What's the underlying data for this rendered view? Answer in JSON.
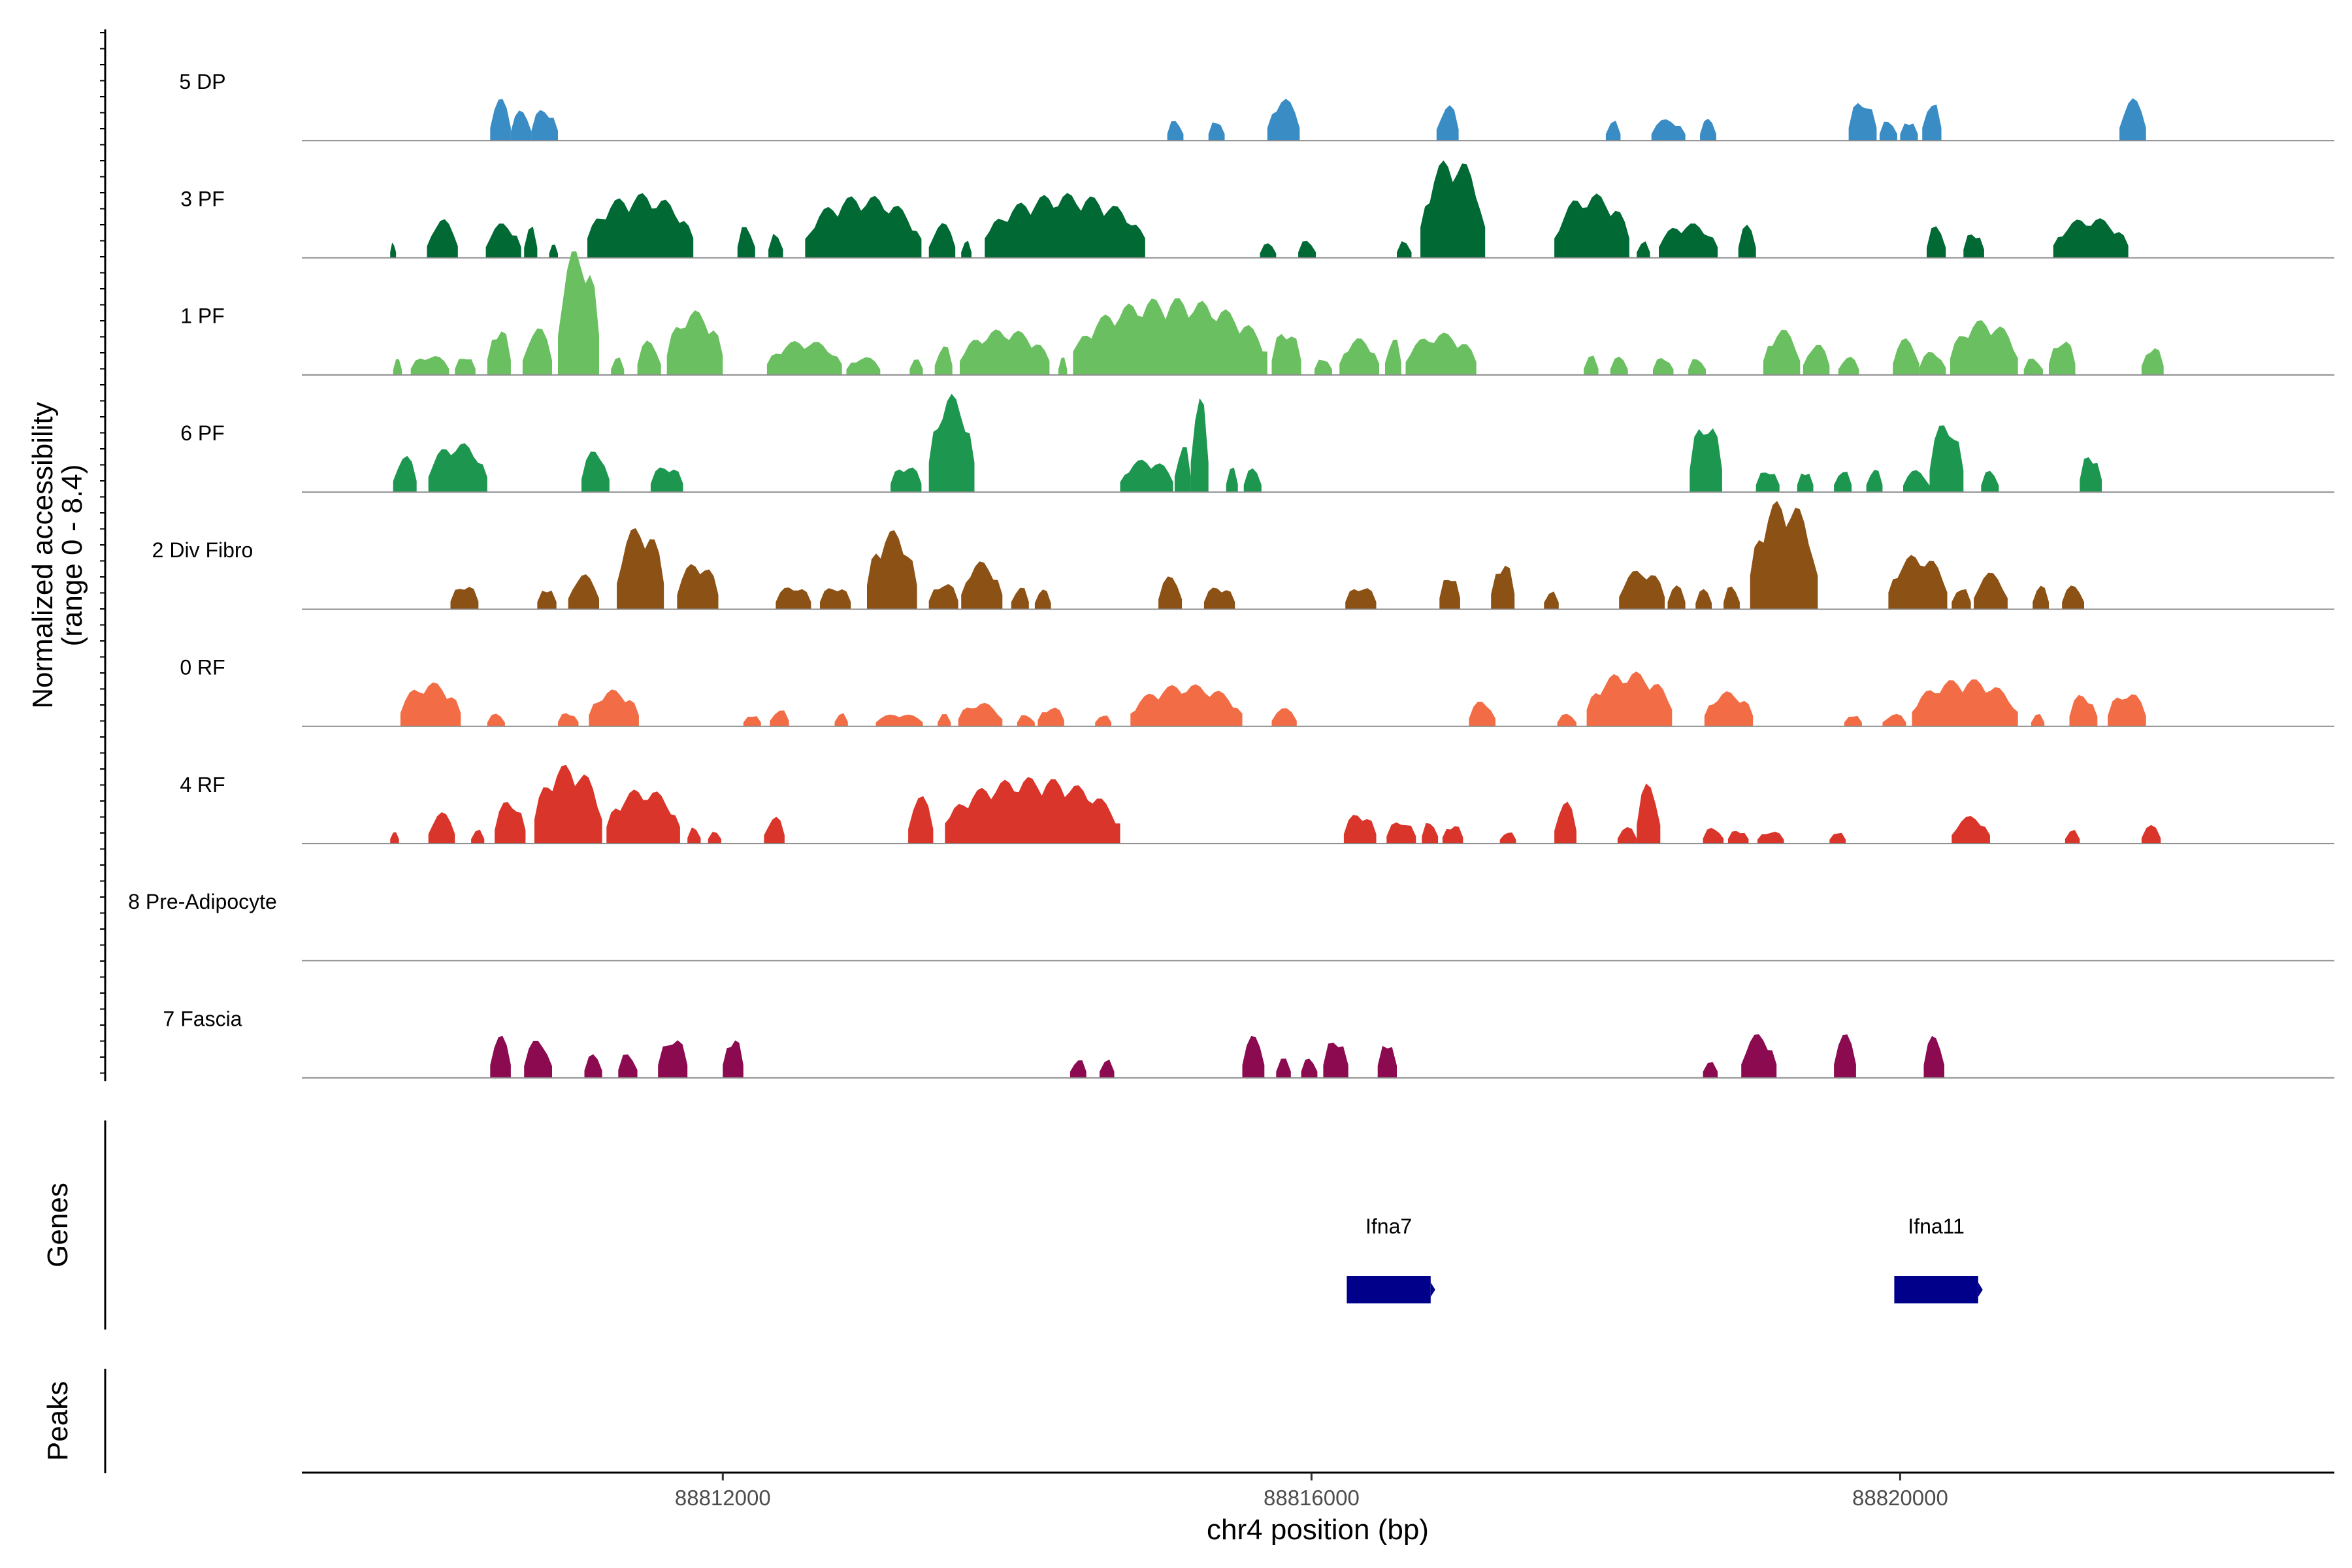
{
  "chart_data": {
    "type": "area",
    "title": "",
    "ylabel": "Normalized accessibility",
    "ylabel_range": "(range 0 - 8.4)",
    "ylim": [
      0,
      8.4
    ],
    "xlabel": "chr4 position (bp)",
    "xlim": [
      88809140,
      88822950
    ],
    "x_ticks": [
      88812000,
      88816000,
      88820000
    ],
    "x_tick_labels": [
      "88812000",
      "88816000",
      "88820000"
    ],
    "tracks_axis_label": "Genes",
    "peaks_axis_label": "Peaks",
    "series": [
      {
        "name": "5 DP",
        "color": "#3a8cc5",
        "peaks": [
          [
            88810420,
            88810560,
            0.46
          ],
          [
            88810560,
            88810700,
            0.33
          ],
          [
            88810700,
            88810880,
            0.36
          ],
          [
            88815020,
            88815130,
            0.24
          ],
          [
            88815300,
            88815410,
            0.24
          ],
          [
            88815700,
            88815920,
            0.46
          ],
          [
            88816850,
            88817000,
            0.4
          ],
          [
            88818000,
            88818100,
            0.24
          ],
          [
            88818310,
            88818540,
            0.24
          ],
          [
            88818640,
            88818750,
            0.24
          ],
          [
            88819650,
            88819840,
            0.46
          ],
          [
            88819860,
            88819980,
            0.24
          ],
          [
            88820000,
            88820120,
            0.24
          ],
          [
            88820150,
            88820280,
            0.46
          ],
          [
            88821490,
            88821670,
            0.46
          ]
        ]
      },
      {
        "name": "3 PF",
        "color": "#006934",
        "peaks": [
          [
            88809740,
            88809780,
            0.2
          ],
          [
            88809990,
            88810200,
            0.42
          ],
          [
            88810390,
            88810630,
            0.38
          ],
          [
            88810650,
            88810740,
            0.36
          ],
          [
            88810820,
            88810880,
            0.15
          ],
          [
            88811080,
            88811800,
            0.7
          ],
          [
            88812100,
            88812220,
            0.38
          ],
          [
            88812310,
            88812410,
            0.3
          ],
          [
            88812560,
            88813350,
            0.68
          ],
          [
            88813400,
            88813580,
            0.38
          ],
          [
            88813620,
            88813690,
            0.2
          ],
          [
            88813780,
            88814870,
            0.7
          ],
          [
            88815650,
            88815760,
            0.16
          ],
          [
            88815910,
            88816030,
            0.2
          ],
          [
            88816580,
            88816680,
            0.2
          ],
          [
            88816740,
            88817180,
            1.1
          ],
          [
            88817650,
            88818160,
            0.7
          ],
          [
            88818210,
            88818300,
            0.2
          ],
          [
            88818360,
            88818760,
            0.38
          ],
          [
            88818900,
            88819020,
            0.36
          ],
          [
            88820180,
            88820310,
            0.36
          ],
          [
            88820430,
            88820570,
            0.3
          ],
          [
            88821040,
            88821550,
            0.44
          ]
        ]
      },
      {
        "name": "1 PF",
        "color": "#6abf60",
        "peaks": [
          [
            88809760,
            88809820,
            0.18
          ],
          [
            88809880,
            88810140,
            0.22
          ],
          [
            88810180,
            88810320,
            0.22
          ],
          [
            88810400,
            88810560,
            0.54
          ],
          [
            88810640,
            88810840,
            0.52
          ],
          [
            88810880,
            88811160,
            1.4
          ],
          [
            88811240,
            88811330,
            0.2
          ],
          [
            88811420,
            88811580,
            0.38
          ],
          [
            88811620,
            88812000,
            0.7
          ],
          [
            88812300,
            88812810,
            0.38
          ],
          [
            88812840,
            88813070,
            0.2
          ],
          [
            88813270,
            88813360,
            0.22
          ],
          [
            88813440,
            88813560,
            0.34
          ],
          [
            88813610,
            88814220,
            0.5
          ],
          [
            88814280,
            88814340,
            0.2
          ],
          [
            88814380,
            88815700,
            0.84
          ],
          [
            88815730,
            88815930,
            0.52
          ],
          [
            88816020,
            88816140,
            0.2
          ],
          [
            88816190,
            88816460,
            0.4
          ],
          [
            88816500,
            88816610,
            0.44
          ],
          [
            88816640,
            88817120,
            0.46
          ],
          [
            88817850,
            88817950,
            0.22
          ],
          [
            88818030,
            88818150,
            0.2
          ],
          [
            88818320,
            88818460,
            0.2
          ],
          [
            88818560,
            88818680,
            0.2
          ],
          [
            88819070,
            88819320,
            0.5
          ],
          [
            88819340,
            88819520,
            0.34
          ],
          [
            88819580,
            88819720,
            0.2
          ],
          [
            88819950,
            88820130,
            0.4
          ],
          [
            88820130,
            88820310,
            0.26
          ],
          [
            88820340,
            88820800,
            0.6
          ],
          [
            88820840,
            88820970,
            0.2
          ],
          [
            88821010,
            88821190,
            0.4
          ],
          [
            88821640,
            88821790,
            0.32
          ]
        ]
      },
      {
        "name": "6 PF",
        "color": "#1d9650",
        "peaks": [
          [
            88809760,
            88809920,
            0.4
          ],
          [
            88810000,
            88810400,
            0.54
          ],
          [
            88811040,
            88811230,
            0.46
          ],
          [
            88811510,
            88811730,
            0.3
          ],
          [
            88813140,
            88813350,
            0.3
          ],
          [
            88813400,
            88813710,
            1.06
          ],
          [
            88814700,
            88815060,
            0.36
          ],
          [
            88815070,
            88815180,
            0.56
          ],
          [
            88815180,
            88815300,
            1.06
          ],
          [
            88815420,
            88815500,
            0.28
          ],
          [
            88815540,
            88815660,
            0.26
          ],
          [
            88818570,
            88818790,
            0.8
          ],
          [
            88819020,
            88819180,
            0.26
          ],
          [
            88819300,
            88819410,
            0.26
          ],
          [
            88819550,
            88819670,
            0.26
          ],
          [
            88819770,
            88819880,
            0.26
          ],
          [
            88820020,
            88820200,
            0.24
          ],
          [
            88820200,
            88820430,
            0.78
          ],
          [
            88820550,
            88820670,
            0.24
          ],
          [
            88821220,
            88821370,
            0.44
          ]
        ]
      },
      {
        "name": "2 Div Fibro",
        "color": "#8b5115",
        "peaks": [
          [
            88810150,
            88810340,
            0.28
          ],
          [
            88810740,
            88810870,
            0.26
          ],
          [
            88810950,
            88811160,
            0.38
          ],
          [
            88811280,
            88811600,
            0.92
          ],
          [
            88811690,
            88811970,
            0.52
          ],
          [
            88812360,
            88812600,
            0.26
          ],
          [
            88812660,
            88812870,
            0.26
          ],
          [
            88812980,
            88813320,
            0.86
          ],
          [
            88813400,
            88813600,
            0.3
          ],
          [
            88813620,
            88813900,
            0.52
          ],
          [
            88813960,
            88814080,
            0.26
          ],
          [
            88814120,
            88814230,
            0.22
          ],
          [
            88814960,
            88815120,
            0.36
          ],
          [
            88815270,
            88815480,
            0.26
          ],
          [
            88816230,
            88816440,
            0.26
          ],
          [
            88816870,
            88817010,
            0.4
          ],
          [
            88817220,
            88817380,
            0.54
          ],
          [
            88817580,
            88817680,
            0.24
          ],
          [
            88818090,
            88818400,
            0.44
          ],
          [
            88818420,
            88818540,
            0.26
          ],
          [
            88818610,
            88818720,
            0.22
          ],
          [
            88818800,
            88818910,
            0.26
          ],
          [
            88818980,
            88819440,
            1.2
          ],
          [
            88819920,
            88820320,
            0.6
          ],
          [
            88820350,
            88820480,
            0.26
          ],
          [
            88820500,
            88820730,
            0.4
          ],
          [
            88820900,
            88821010,
            0.26
          ],
          [
            88821100,
            88821250,
            0.26
          ]
        ]
      },
      {
        "name": "0 RF",
        "color": "#f26d46",
        "peaks": [
          [
            88809810,
            88810220,
            0.48
          ],
          [
            88810400,
            88810520,
            0.14
          ],
          [
            88810880,
            88811020,
            0.16
          ],
          [
            88811090,
            88811430,
            0.4
          ],
          [
            88812140,
            88812260,
            0.14
          ],
          [
            88812320,
            88812450,
            0.2
          ],
          [
            88812760,
            88812850,
            0.16
          ],
          [
            88813040,
            88813360,
            0.14
          ],
          [
            88813460,
            88813550,
            0.14
          ],
          [
            88813600,
            88813900,
            0.26
          ],
          [
            88814000,
            88814120,
            0.14
          ],
          [
            88814140,
            88814320,
            0.22
          ],
          [
            88814530,
            88814640,
            0.14
          ],
          [
            88814770,
            88815530,
            0.46
          ],
          [
            88815730,
            88815900,
            0.2
          ],
          [
            88817070,
            88817250,
            0.28
          ],
          [
            88817670,
            88817800,
            0.14
          ],
          [
            88817870,
            88818450,
            0.6
          ],
          [
            88818670,
            88819000,
            0.38
          ],
          [
            88819620,
            88819740,
            0.14
          ],
          [
            88819880,
            88820040,
            0.14
          ],
          [
            88820080,
            88820800,
            0.52
          ],
          [
            88820890,
            88820980,
            0.14
          ],
          [
            88821150,
            88821340,
            0.36
          ],
          [
            88821410,
            88821670,
            0.38
          ]
        ]
      },
      {
        "name": "4 RF",
        "color": "#d9352a",
        "peaks": [
          [
            88809740,
            88809800,
            0.16
          ],
          [
            88810000,
            88810180,
            0.34
          ],
          [
            88810290,
            88810380,
            0.16
          ],
          [
            88810450,
            88810660,
            0.48
          ],
          [
            88810720,
            88811180,
            0.86
          ],
          [
            88811210,
            88811710,
            0.6
          ],
          [
            88811760,
            88811850,
            0.2
          ],
          [
            88811900,
            88811990,
            0.16
          ],
          [
            88812280,
            88812420,
            0.3
          ],
          [
            88813260,
            88813430,
            0.52
          ],
          [
            88813510,
            88814700,
            0.72
          ],
          [
            88816220,
            88816440,
            0.34
          ],
          [
            88816510,
            88816710,
            0.26
          ],
          [
            88816750,
            88816860,
            0.26
          ],
          [
            88816890,
            88817030,
            0.22
          ],
          [
            88817280,
            88817390,
            0.14
          ],
          [
            88817650,
            88817800,
            0.46
          ],
          [
            88818080,
            88818210,
            0.18
          ],
          [
            88818210,
            88818370,
            0.66
          ],
          [
            88818660,
            88818800,
            0.18
          ],
          [
            88818830,
            88818970,
            0.16
          ],
          [
            88819030,
            88819210,
            0.14
          ],
          [
            88819520,
            88819630,
            0.14
          ],
          [
            88820350,
            88820610,
            0.3
          ],
          [
            88821120,
            88821220,
            0.16
          ],
          [
            88821640,
            88821770,
            0.2
          ]
        ]
      },
      {
        "name": "8 Pre-Adipocyte",
        "color": "#888888",
        "peaks": []
      },
      {
        "name": "7 Fascia",
        "color": "#8b0a50",
        "peaks": [
          [
            88810420,
            88810560,
            0.46
          ],
          [
            88810650,
            88810840,
            0.42
          ],
          [
            88811060,
            88811180,
            0.26
          ],
          [
            88811290,
            88811420,
            0.28
          ],
          [
            88811560,
            88811760,
            0.46
          ],
          [
            88812000,
            88812140,
            0.46
          ],
          [
            88814360,
            88814470,
            0.22
          ],
          [
            88814560,
            88814660,
            0.22
          ],
          [
            88815530,
            88815680,
            0.46
          ],
          [
            88815760,
            88815860,
            0.22
          ],
          [
            88815930,
            88816040,
            0.22
          ],
          [
            88816080,
            88816250,
            0.46
          ],
          [
            88816450,
            88816580,
            0.44
          ],
          [
            88818660,
            88818760,
            0.22
          ],
          [
            88818920,
            88819160,
            0.48
          ],
          [
            88819550,
            88819700,
            0.48
          ],
          [
            88820160,
            88820300,
            0.46
          ]
        ]
      }
    ],
    "genes": [
      {
        "name": "Ifna7",
        "start": 88816240,
        "end": 88816810,
        "color": "#00008b"
      },
      {
        "name": "Ifna11",
        "start": 88819960,
        "end": 88820530,
        "color": "#00008b"
      }
    ]
  }
}
